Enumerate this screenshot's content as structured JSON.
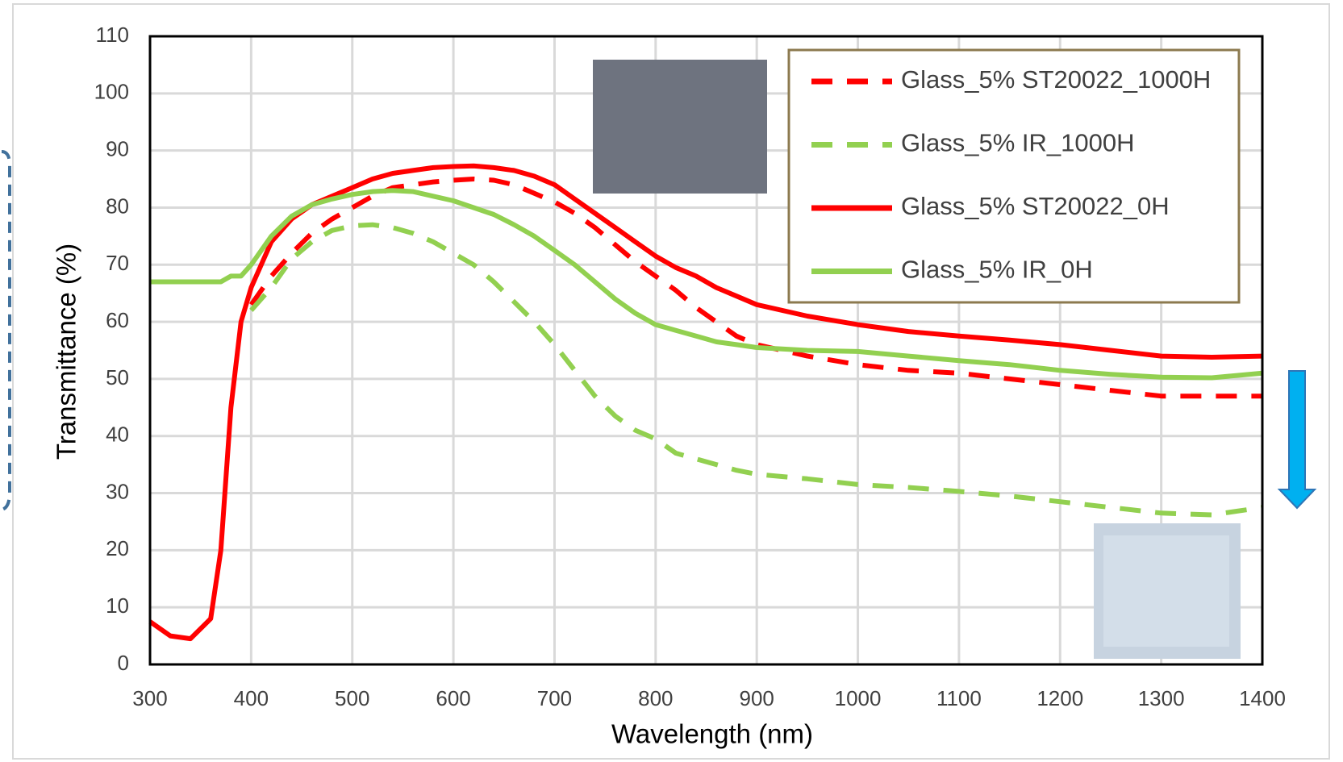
{
  "chart_data": {
    "type": "line",
    "x_label": "Wavelength (nm)",
    "y_label": "Transmittance (%)",
    "xlim": [
      300,
      1400
    ],
    "ylim": [
      0,
      110
    ],
    "xticks": [
      300,
      400,
      500,
      600,
      700,
      800,
      900,
      1000,
      1100,
      1200,
      1300,
      1400
    ],
    "yticks": [
      0,
      10,
      20,
      30,
      40,
      50,
      60,
      70,
      80,
      90,
      100,
      110
    ],
    "grid": true,
    "legend": "upper right",
    "x": [
      300,
      320,
      340,
      360,
      370,
      380,
      390,
      400,
      420,
      440,
      460,
      480,
      500,
      520,
      540,
      560,
      580,
      600,
      620,
      640,
      660,
      680,
      700,
      720,
      740,
      760,
      780,
      800,
      820,
      840,
      860,
      880,
      900,
      950,
      1000,
      1050,
      1100,
      1150,
      1200,
      1250,
      1300,
      1350,
      1400
    ],
    "series": [
      {
        "name": "Glass_5% ST20022_1000H",
        "color": "#ff0000",
        "line_style": "dashed",
        "values": [
          null,
          null,
          null,
          null,
          null,
          null,
          null,
          63,
          68,
          72,
          75.5,
          78,
          80,
          82,
          83.5,
          84,
          84.5,
          84.8,
          85,
          84.8,
          84,
          82.5,
          81,
          79,
          76.5,
          73.5,
          70.5,
          68,
          65.5,
          62.5,
          60,
          57.5,
          56,
          54,
          52.5,
          51.5,
          51,
          50,
          49,
          48,
          47,
          47,
          47
        ]
      },
      {
        "name": "Glass_5% IR_1000H",
        "color": "#92d050",
        "line_style": "dashed",
        "values": [
          null,
          null,
          null,
          null,
          null,
          null,
          null,
          62,
          66,
          71,
          74,
          76,
          76.8,
          77,
          76.5,
          75.5,
          74,
          72,
          70,
          67,
          63.5,
          60,
          56,
          51.5,
          47,
          43.5,
          41,
          39.5,
          37,
          36,
          35,
          34,
          33.3,
          32.5,
          31.5,
          31,
          30.3,
          29.5,
          28.5,
          27.5,
          26.5,
          26.2,
          27.5
        ]
      },
      {
        "name": "Glass_5% ST20022_0H",
        "color": "#ff0000",
        "line_style": "solid",
        "values": [
          7.5,
          5,
          4.5,
          8,
          20,
          45,
          60,
          66,
          74,
          78,
          80.5,
          82,
          83.5,
          85,
          86,
          86.5,
          87,
          87.2,
          87.3,
          87,
          86.5,
          85.5,
          84,
          81.5,
          79,
          76.5,
          74,
          71.5,
          69.5,
          68,
          66,
          64.5,
          63,
          61,
          59.5,
          58.3,
          57.5,
          56.8,
          56,
          55,
          54,
          53.8,
          54
        ]
      },
      {
        "name": "Glass_5% IR_0H",
        "color": "#92d050",
        "line_style": "solid",
        "values": [
          67,
          67,
          67,
          67,
          67,
          68,
          68,
          70,
          75,
          78.5,
          80.5,
          81.5,
          82.3,
          82.8,
          83,
          82.8,
          82,
          81.2,
          80,
          78.8,
          77,
          75,
          72.5,
          70,
          67,
          64,
          61.5,
          59.5,
          58.5,
          57.5,
          56.5,
          56,
          55.5,
          55,
          54.8,
          54,
          53.2,
          52.5,
          51.5,
          50.8,
          50.3,
          50.2,
          51
        ]
      }
    ]
  }
}
